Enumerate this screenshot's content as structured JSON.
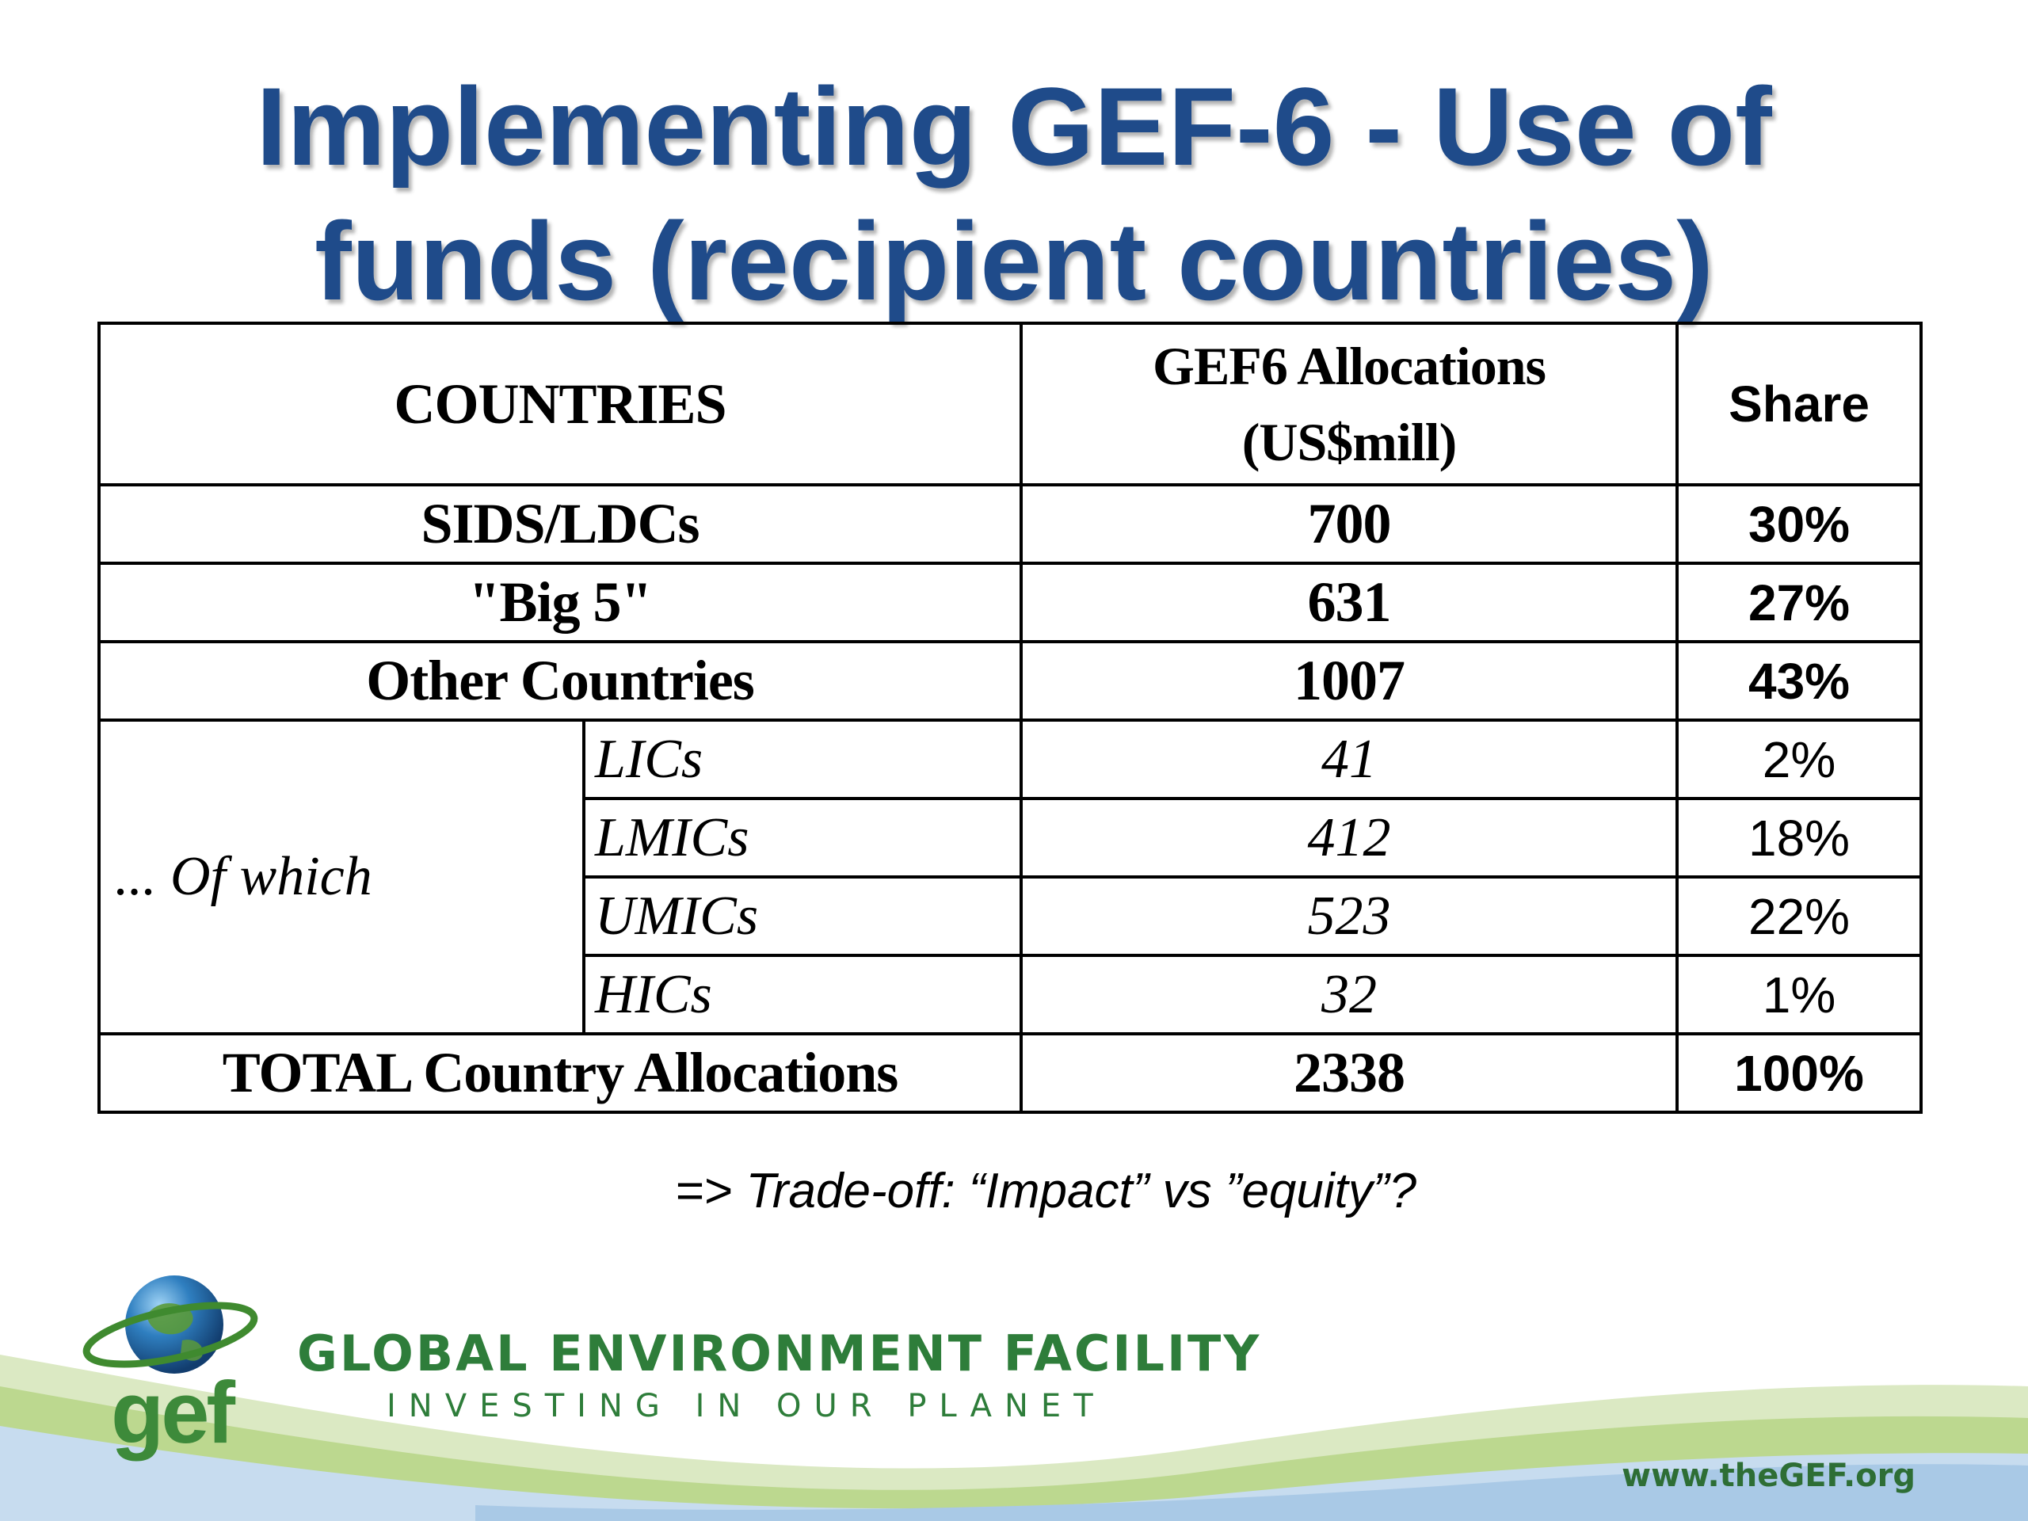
{
  "title": {
    "line1": "Implementing GEF-6 - Use of",
    "line2": "funds (recipient countries)"
  },
  "table": {
    "headers": {
      "countries": "COUNTRIES",
      "allocations_line1": "GEF6 Allocations",
      "allocations_line2": "(US$mill)",
      "share": "Share"
    },
    "rows": [
      {
        "country": "SIDS/LDCs",
        "allocation": "700",
        "share": "30%"
      },
      {
        "country": "\"Big 5\"",
        "allocation": "631",
        "share": "27%"
      },
      {
        "country": "Other Countries",
        "allocation": "1007",
        "share": "43%"
      }
    ],
    "of_which_label": "... Of which",
    "sub_rows": [
      {
        "country": "LICs",
        "allocation": "41",
        "share": "2%"
      },
      {
        "country": "LMICs",
        "allocation": "412",
        "share": "18%"
      },
      {
        "country": "UMICs",
        "allocation": "523",
        "share": "22%"
      },
      {
        "country": "HICs",
        "allocation": "32",
        "share": "1%"
      }
    ],
    "total": {
      "country": "TOTAL Country Allocations",
      "allocation": "2338",
      "share": "100%"
    }
  },
  "tradeoff_note": "=> Trade-off: “Impact” vs  ”equity”?",
  "footer": {
    "logo_text": "gef",
    "org_name": "GLOBAL ENVIRONMENT FACILITY",
    "tagline": "INVESTING IN OUR PLANET",
    "website": "www.theGEF.org"
  },
  "colors": {
    "title": "#1f4b8a",
    "brand_green": "#2e7d3a",
    "wave_light_green": "#cfe3a8",
    "wave_blue": "#b7d3ea"
  },
  "icons": {
    "logo": "gef-globe-icon"
  }
}
